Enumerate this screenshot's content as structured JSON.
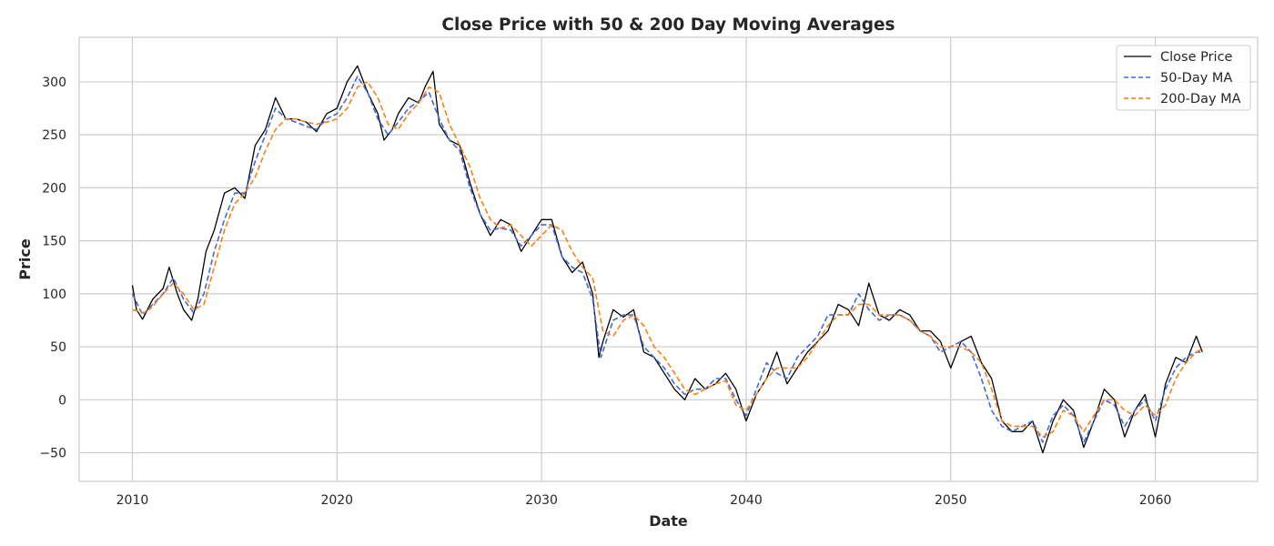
{
  "chart_data": {
    "type": "line",
    "title": "Close Price with 50 & 200 Day Moving Averages",
    "xlabel": "Date",
    "ylabel": "Price",
    "x_unit": "year",
    "xlim": [
      2007.4,
      2065.0
    ],
    "ylim": [
      -77,
      342
    ],
    "x_ticks": [
      2010,
      2020,
      2030,
      2040,
      2050,
      2060
    ],
    "y_ticks": [
      -50,
      0,
      50,
      100,
      150,
      200,
      250,
      300
    ],
    "grid": true,
    "legend_position": "top-right",
    "series": [
      {
        "name": "Close Price",
        "color": "#000000",
        "style": "solid",
        "x": [
          2010.0,
          2010.2,
          2010.5,
          2011.0,
          2011.5,
          2011.8,
          2012.2,
          2012.5,
          2012.9,
          2013.2,
          2013.6,
          2014.0,
          2014.5,
          2015.0,
          2015.5,
          2016.0,
          2016.5,
          2017.0,
          2017.5,
          2018.0,
          2018.5,
          2019.0,
          2019.5,
          2020.0,
          2020.5,
          2021.0,
          2021.5,
          2022.0,
          2022.3,
          2022.7,
          2023.0,
          2023.5,
          2024.0,
          2024.3,
          2024.7,
          2025.0,
          2025.5,
          2026.0,
          2026.5,
          2027.0,
          2027.5,
          2028.0,
          2028.5,
          2029.0,
          2029.5,
          2030.0,
          2030.5,
          2031.0,
          2031.5,
          2032.0,
          2032.5,
          2032.8,
          2033.0,
          2033.5,
          2034.0,
          2034.5,
          2035.0,
          2035.5,
          2036.0,
          2036.5,
          2037.0,
          2037.5,
          2038.0,
          2038.5,
          2039.0,
          2039.5,
          2040.0,
          2040.5,
          2041.0,
          2041.5,
          2042.0,
          2042.5,
          2043.0,
          2043.5,
          2044.0,
          2044.5,
          2045.0,
          2045.5,
          2046.0,
          2046.5,
          2047.0,
          2047.5,
          2048.0,
          2048.5,
          2049.0,
          2049.5,
          2050.0,
          2050.5,
          2051.0,
          2051.5,
          2052.0,
          2052.5,
          2053.0,
          2053.5,
          2054.0,
          2054.5,
          2055.0,
          2055.5,
          2056.0,
          2056.5,
          2057.0,
          2057.5,
          2058.0,
          2058.5,
          2059.0,
          2059.5,
          2060.0,
          2060.5,
          2061.0,
          2061.5,
          2062.0,
          2062.3
        ],
        "values": [
          108,
          85,
          76,
          95,
          105,
          125,
          100,
          85,
          75,
          95,
          140,
          160,
          195,
          200,
          190,
          240,
          255,
          285,
          265,
          265,
          262,
          253,
          270,
          275,
          300,
          315,
          290,
          270,
          245,
          255,
          270,
          285,
          280,
          295,
          310,
          260,
          245,
          240,
          205,
          175,
          155,
          170,
          165,
          140,
          155,
          170,
          170,
          135,
          120,
          130,
          100,
          40,
          55,
          85,
          78,
          85,
          45,
          40,
          25,
          10,
          0,
          20,
          10,
          15,
          25,
          10,
          -20,
          5,
          20,
          45,
          15,
          30,
          45,
          55,
          65,
          90,
          85,
          70,
          110,
          80,
          75,
          85,
          80,
          65,
          65,
          55,
          30,
          55,
          60,
          35,
          20,
          -20,
          -30,
          -30,
          -20,
          -50,
          -20,
          0,
          -10,
          -45,
          -20,
          10,
          0,
          -35,
          -10,
          5,
          -35,
          15,
          40,
          35,
          60,
          45
        ]
      },
      {
        "name": "50-Day MA",
        "color": "#4169e1",
        "style": "dashed",
        "x": [
          2010.0,
          2010.5,
          2011.0,
          2011.5,
          2012.0,
          2012.5,
          2013.0,
          2013.5,
          2014.0,
          2014.5,
          2015.0,
          2015.5,
          2016.0,
          2016.5,
          2017.0,
          2017.5,
          2018.0,
          2018.5,
          2019.0,
          2019.5,
          2020.0,
          2020.5,
          2021.0,
          2021.5,
          2022.0,
          2022.5,
          2023.0,
          2023.5,
          2024.0,
          2024.5,
          2025.0,
          2025.5,
          2026.0,
          2026.5,
          2027.0,
          2027.5,
          2028.0,
          2028.5,
          2029.0,
          2029.5,
          2030.0,
          2030.5,
          2031.0,
          2031.5,
          2032.0,
          2032.5,
          2032.9,
          2033.5,
          2034.0,
          2034.5,
          2035.0,
          2035.5,
          2036.0,
          2036.5,
          2037.0,
          2037.5,
          2038.0,
          2038.5,
          2039.0,
          2039.5,
          2040.0,
          2040.5,
          2041.0,
          2041.5,
          2042.0,
          2042.5,
          2043.0,
          2043.5,
          2044.0,
          2044.5,
          2045.0,
          2045.5,
          2046.0,
          2046.5,
          2047.0,
          2047.5,
          2048.0,
          2048.5,
          2049.0,
          2049.5,
          2050.0,
          2050.5,
          2051.0,
          2051.5,
          2052.0,
          2052.5,
          2053.0,
          2053.5,
          2054.0,
          2054.5,
          2055.0,
          2055.5,
          2056.0,
          2056.5,
          2057.0,
          2057.5,
          2058.0,
          2058.5,
          2059.0,
          2059.5,
          2060.0,
          2060.5,
          2061.0,
          2061.5,
          2062.0,
          2062.3
        ],
        "values": [
          100,
          80,
          90,
          100,
          115,
          95,
          82,
          100,
          140,
          170,
          195,
          195,
          225,
          250,
          275,
          265,
          262,
          258,
          255,
          265,
          270,
          285,
          305,
          290,
          265,
          250,
          262,
          275,
          282,
          290,
          265,
          245,
          235,
          200,
          175,
          160,
          162,
          160,
          145,
          155,
          165,
          165,
          135,
          125,
          120,
          95,
          40,
          75,
          80,
          80,
          50,
          40,
          30,
          15,
          5,
          10,
          10,
          20,
          20,
          0,
          -15,
          10,
          35,
          25,
          20,
          40,
          50,
          60,
          80,
          80,
          80,
          100,
          85,
          75,
          80,
          80,
          75,
          65,
          60,
          45,
          50,
          55,
          45,
          20,
          -10,
          -25,
          -30,
          -25,
          -20,
          -40,
          -15,
          -5,
          -15,
          -40,
          -20,
          0,
          -5,
          -25,
          -10,
          0,
          -20,
          10,
          30,
          40,
          45,
          45
        ]
      },
      {
        "name": "200-Day MA",
        "color": "#ff7f0e",
        "style": "dashed",
        "x": [
          2010.0,
          2010.6,
          2011.0,
          2011.5,
          2012.0,
          2012.5,
          2013.0,
          2013.5,
          2014.0,
          2014.5,
          2015.0,
          2015.5,
          2016.0,
          2016.5,
          2017.0,
          2017.5,
          2018.0,
          2018.5,
          2019.0,
          2019.5,
          2020.0,
          2020.5,
          2021.0,
          2021.5,
          2022.0,
          2022.5,
          2023.0,
          2023.5,
          2024.0,
          2024.5,
          2025.0,
          2025.5,
          2026.0,
          2026.5,
          2027.0,
          2027.5,
          2028.0,
          2028.5,
          2029.0,
          2029.5,
          2030.0,
          2030.5,
          2031.0,
          2031.5,
          2032.0,
          2032.5,
          2033.0,
          2033.5,
          2034.0,
          2034.5,
          2035.0,
          2035.5,
          2036.0,
          2036.5,
          2037.0,
          2037.5,
          2038.0,
          2038.5,
          2039.0,
          2039.5,
          2040.0,
          2040.5,
          2041.0,
          2041.5,
          2042.0,
          2042.5,
          2043.0,
          2043.5,
          2044.0,
          2044.5,
          2045.0,
          2045.5,
          2046.0,
          2046.5,
          2047.0,
          2047.5,
          2048.0,
          2048.5,
          2049.0,
          2049.5,
          2050.0,
          2050.5,
          2051.0,
          2051.5,
          2052.0,
          2052.5,
          2053.0,
          2053.5,
          2054.0,
          2054.5,
          2055.0,
          2055.5,
          2056.0,
          2056.5,
          2057.0,
          2057.5,
          2058.0,
          2058.5,
          2059.0,
          2059.5,
          2060.0,
          2060.5,
          2061.0,
          2061.5,
          2062.0,
          2062.3
        ],
        "values": [
          85,
          82,
          88,
          100,
          110,
          100,
          85,
          90,
          125,
          160,
          185,
          195,
          210,
          235,
          255,
          265,
          265,
          262,
          260,
          262,
          265,
          275,
          295,
          300,
          285,
          260,
          255,
          270,
          280,
          295,
          290,
          260,
          240,
          220,
          190,
          170,
          162,
          165,
          155,
          145,
          155,
          165,
          160,
          140,
          125,
          115,
          65,
          60,
          75,
          80,
          70,
          50,
          40,
          25,
          10,
          5,
          10,
          15,
          18,
          -5,
          -10,
          5,
          20,
          30,
          30,
          30,
          40,
          55,
          70,
          80,
          80,
          90,
          90,
          80,
          80,
          80,
          75,
          65,
          60,
          50,
          50,
          50,
          45,
          35,
          10,
          -20,
          -25,
          -25,
          -25,
          -35,
          -30,
          -10,
          -15,
          -30,
          -15,
          0,
          0,
          -10,
          -15,
          -5,
          -15,
          -5,
          20,
          35,
          45,
          48
        ]
      }
    ]
  }
}
